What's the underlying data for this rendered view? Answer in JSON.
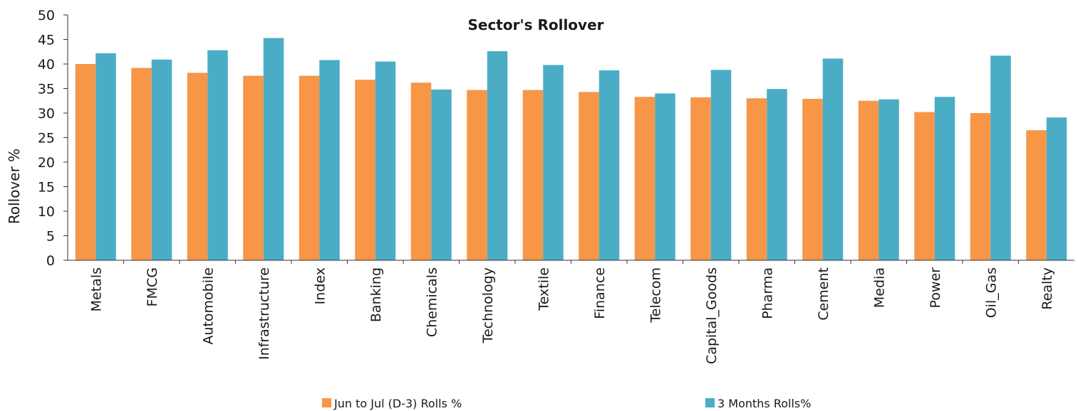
{
  "chart_data": {
    "type": "bar",
    "title": "Sector's Rollover",
    "ylabel": "Rollover %",
    "xlabel": "",
    "ylim": [
      0,
      50
    ],
    "yticks": [
      0,
      5,
      10,
      15,
      20,
      25,
      30,
      35,
      40,
      45,
      50
    ],
    "grid": false,
    "legend_position": "bottom",
    "categories": [
      "Metals",
      "FMCG",
      "Automobile",
      "Infrastructure",
      "Index",
      "Banking",
      "Chemicals",
      "Technology",
      "Textile",
      "Finance",
      "Telecom",
      "Capital_Goods",
      "Pharma",
      "Cement",
      "Media",
      "Power",
      "Oil_Gas",
      "Realty"
    ],
    "series": [
      {
        "name": "Jun to Jul (D-3) Rolls %",
        "color": "#f79646",
        "values": [
          40.0,
          39.2,
          38.2,
          37.6,
          37.6,
          36.8,
          36.2,
          34.7,
          34.7,
          34.3,
          33.3,
          33.2,
          33.0,
          32.9,
          32.5,
          30.2,
          30.0,
          26.5
        ]
      },
      {
        "name": "3 Months Rolls%",
        "color": "#4bacc6",
        "values": [
          42.2,
          40.9,
          42.8,
          45.3,
          40.8,
          40.5,
          34.8,
          42.6,
          39.8,
          38.7,
          34.0,
          38.8,
          34.9,
          41.1,
          32.8,
          33.3,
          41.7,
          29.1
        ]
      }
    ]
  }
}
